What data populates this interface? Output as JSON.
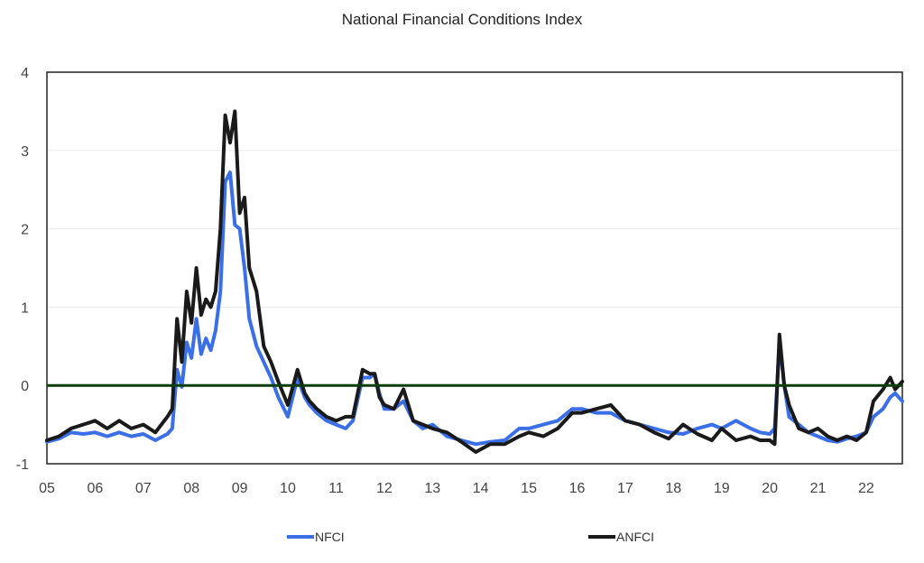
{
  "chart_data": {
    "type": "line",
    "title": "National Financial Conditions Index",
    "xlabel": "",
    "ylabel": "",
    "x_ticks": [
      "05",
      "06",
      "07",
      "08",
      "09",
      "10",
      "11",
      "12",
      "13",
      "14",
      "15",
      "16",
      "17",
      "18",
      "19",
      "20",
      "21",
      "22"
    ],
    "x_tick_values": [
      2005,
      2006,
      2007,
      2008,
      2009,
      2010,
      2011,
      2012,
      2013,
      2014,
      2015,
      2016,
      2017,
      2018,
      2019,
      2020,
      2021,
      2022
    ],
    "xlim": [
      2005,
      2022.75
    ],
    "y_ticks": [
      "-1",
      "0",
      "1",
      "2",
      "3",
      "4"
    ],
    "y_tick_values": [
      -1,
      0,
      1,
      2,
      3,
      4
    ],
    "ylim": [
      -1,
      4
    ],
    "grid": "horizontal",
    "zero_line": true,
    "zero_line_color": "#0b3d0b",
    "legend": "bottom",
    "series": [
      {
        "name": "NFCI",
        "color": "#3b6fe8",
        "x": [
          2005.0,
          2005.25,
          2005.5,
          2005.75,
          2006.0,
          2006.25,
          2006.5,
          2006.75,
          2007.0,
          2007.25,
          2007.5,
          2007.6,
          2007.7,
          2007.8,
          2007.9,
          2008.0,
          2008.1,
          2008.2,
          2008.3,
          2008.4,
          2008.5,
          2008.6,
          2008.7,
          2008.8,
          2008.9,
          2009.0,
          2009.1,
          2009.2,
          2009.35,
          2009.5,
          2009.65,
          2009.8,
          2010.0,
          2010.2,
          2010.35,
          2010.45,
          2010.6,
          2010.8,
          2011.0,
          2011.2,
          2011.35,
          2011.55,
          2011.7,
          2011.8,
          2011.9,
          2012.0,
          2012.2,
          2012.4,
          2012.6,
          2012.8,
          2013.0,
          2013.3,
          2013.6,
          2013.9,
          2014.2,
          2014.5,
          2014.8,
          2015.0,
          2015.3,
          2015.6,
          2015.9,
          2016.1,
          2016.4,
          2016.7,
          2017.0,
          2017.3,
          2017.6,
          2017.9,
          2018.2,
          2018.5,
          2018.8,
          2019.0,
          2019.3,
          2019.6,
          2019.8,
          2020.0,
          2020.1,
          2020.2,
          2020.3,
          2020.4,
          2020.6,
          2020.8,
          2021.0,
          2021.2,
          2021.4,
          2021.6,
          2021.8,
          2022.0,
          2022.15,
          2022.35,
          2022.5,
          2022.6,
          2022.75
        ],
        "y": [
          -0.72,
          -0.68,
          -0.6,
          -0.62,
          -0.6,
          -0.65,
          -0.6,
          -0.65,
          -0.62,
          -0.7,
          -0.62,
          -0.55,
          0.2,
          -0.02,
          0.55,
          0.35,
          0.85,
          0.4,
          0.6,
          0.45,
          0.7,
          1.2,
          2.6,
          2.72,
          2.05,
          2.0,
          1.5,
          0.85,
          0.5,
          0.3,
          0.1,
          -0.15,
          -0.4,
          0.1,
          -0.15,
          -0.25,
          -0.35,
          -0.45,
          -0.5,
          -0.55,
          -0.45,
          0.1,
          0.1,
          0.15,
          -0.1,
          -0.3,
          -0.3,
          -0.2,
          -0.45,
          -0.55,
          -0.5,
          -0.65,
          -0.7,
          -0.75,
          -0.72,
          -0.7,
          -0.55,
          -0.55,
          -0.5,
          -0.45,
          -0.3,
          -0.3,
          -0.35,
          -0.35,
          -0.45,
          -0.5,
          -0.55,
          -0.6,
          -0.62,
          -0.55,
          -0.5,
          -0.55,
          -0.45,
          -0.55,
          -0.6,
          -0.62,
          -0.55,
          0.55,
          0.0,
          -0.4,
          -0.5,
          -0.6,
          -0.65,
          -0.7,
          -0.72,
          -0.68,
          -0.65,
          -0.6,
          -0.4,
          -0.3,
          -0.15,
          -0.1,
          -0.2
        ]
      },
      {
        "name": "ANFCI",
        "color": "#1a1a1a",
        "x": [
          2005.0,
          2005.25,
          2005.5,
          2005.75,
          2006.0,
          2006.25,
          2006.5,
          2006.75,
          2007.0,
          2007.25,
          2007.5,
          2007.6,
          2007.7,
          2007.8,
          2007.9,
          2008.0,
          2008.1,
          2008.2,
          2008.3,
          2008.4,
          2008.5,
          2008.6,
          2008.7,
          2008.8,
          2008.9,
          2009.0,
          2009.1,
          2009.2,
          2009.35,
          2009.5,
          2009.65,
          2009.8,
          2010.0,
          2010.2,
          2010.35,
          2010.45,
          2010.6,
          2010.8,
          2011.0,
          2011.2,
          2011.35,
          2011.55,
          2011.7,
          2011.8,
          2011.9,
          2012.0,
          2012.2,
          2012.4,
          2012.6,
          2012.8,
          2013.0,
          2013.3,
          2013.6,
          2013.9,
          2014.2,
          2014.5,
          2014.8,
          2015.0,
          2015.3,
          2015.6,
          2015.9,
          2016.1,
          2016.4,
          2016.7,
          2017.0,
          2017.3,
          2017.6,
          2017.9,
          2018.2,
          2018.5,
          2018.8,
          2019.0,
          2019.3,
          2019.6,
          2019.8,
          2020.0,
          2020.1,
          2020.2,
          2020.3,
          2020.4,
          2020.6,
          2020.8,
          2021.0,
          2021.2,
          2021.4,
          2021.6,
          2021.8,
          2022.0,
          2022.15,
          2022.35,
          2022.5,
          2022.6,
          2022.75
        ],
        "y": [
          -0.7,
          -0.65,
          -0.55,
          -0.5,
          -0.45,
          -0.55,
          -0.45,
          -0.55,
          -0.5,
          -0.6,
          -0.4,
          -0.3,
          0.85,
          0.3,
          1.2,
          0.8,
          1.5,
          0.9,
          1.1,
          1.0,
          1.2,
          2.0,
          3.45,
          3.1,
          3.5,
          2.2,
          2.4,
          1.5,
          1.2,
          0.5,
          0.3,
          0.05,
          -0.25,
          0.2,
          -0.1,
          -0.2,
          -0.3,
          -0.4,
          -0.45,
          -0.4,
          -0.4,
          0.2,
          0.15,
          0.15,
          -0.15,
          -0.25,
          -0.3,
          -0.05,
          -0.45,
          -0.5,
          -0.55,
          -0.6,
          -0.72,
          -0.85,
          -0.75,
          -0.75,
          -0.65,
          -0.6,
          -0.65,
          -0.55,
          -0.35,
          -0.35,
          -0.3,
          -0.25,
          -0.45,
          -0.5,
          -0.6,
          -0.68,
          -0.5,
          -0.62,
          -0.7,
          -0.55,
          -0.7,
          -0.65,
          -0.7,
          -0.7,
          -0.75,
          0.65,
          0.0,
          -0.25,
          -0.55,
          -0.6,
          -0.55,
          -0.65,
          -0.7,
          -0.65,
          -0.7,
          -0.6,
          -0.2,
          -0.05,
          0.1,
          -0.05,
          0.05
        ]
      }
    ]
  }
}
